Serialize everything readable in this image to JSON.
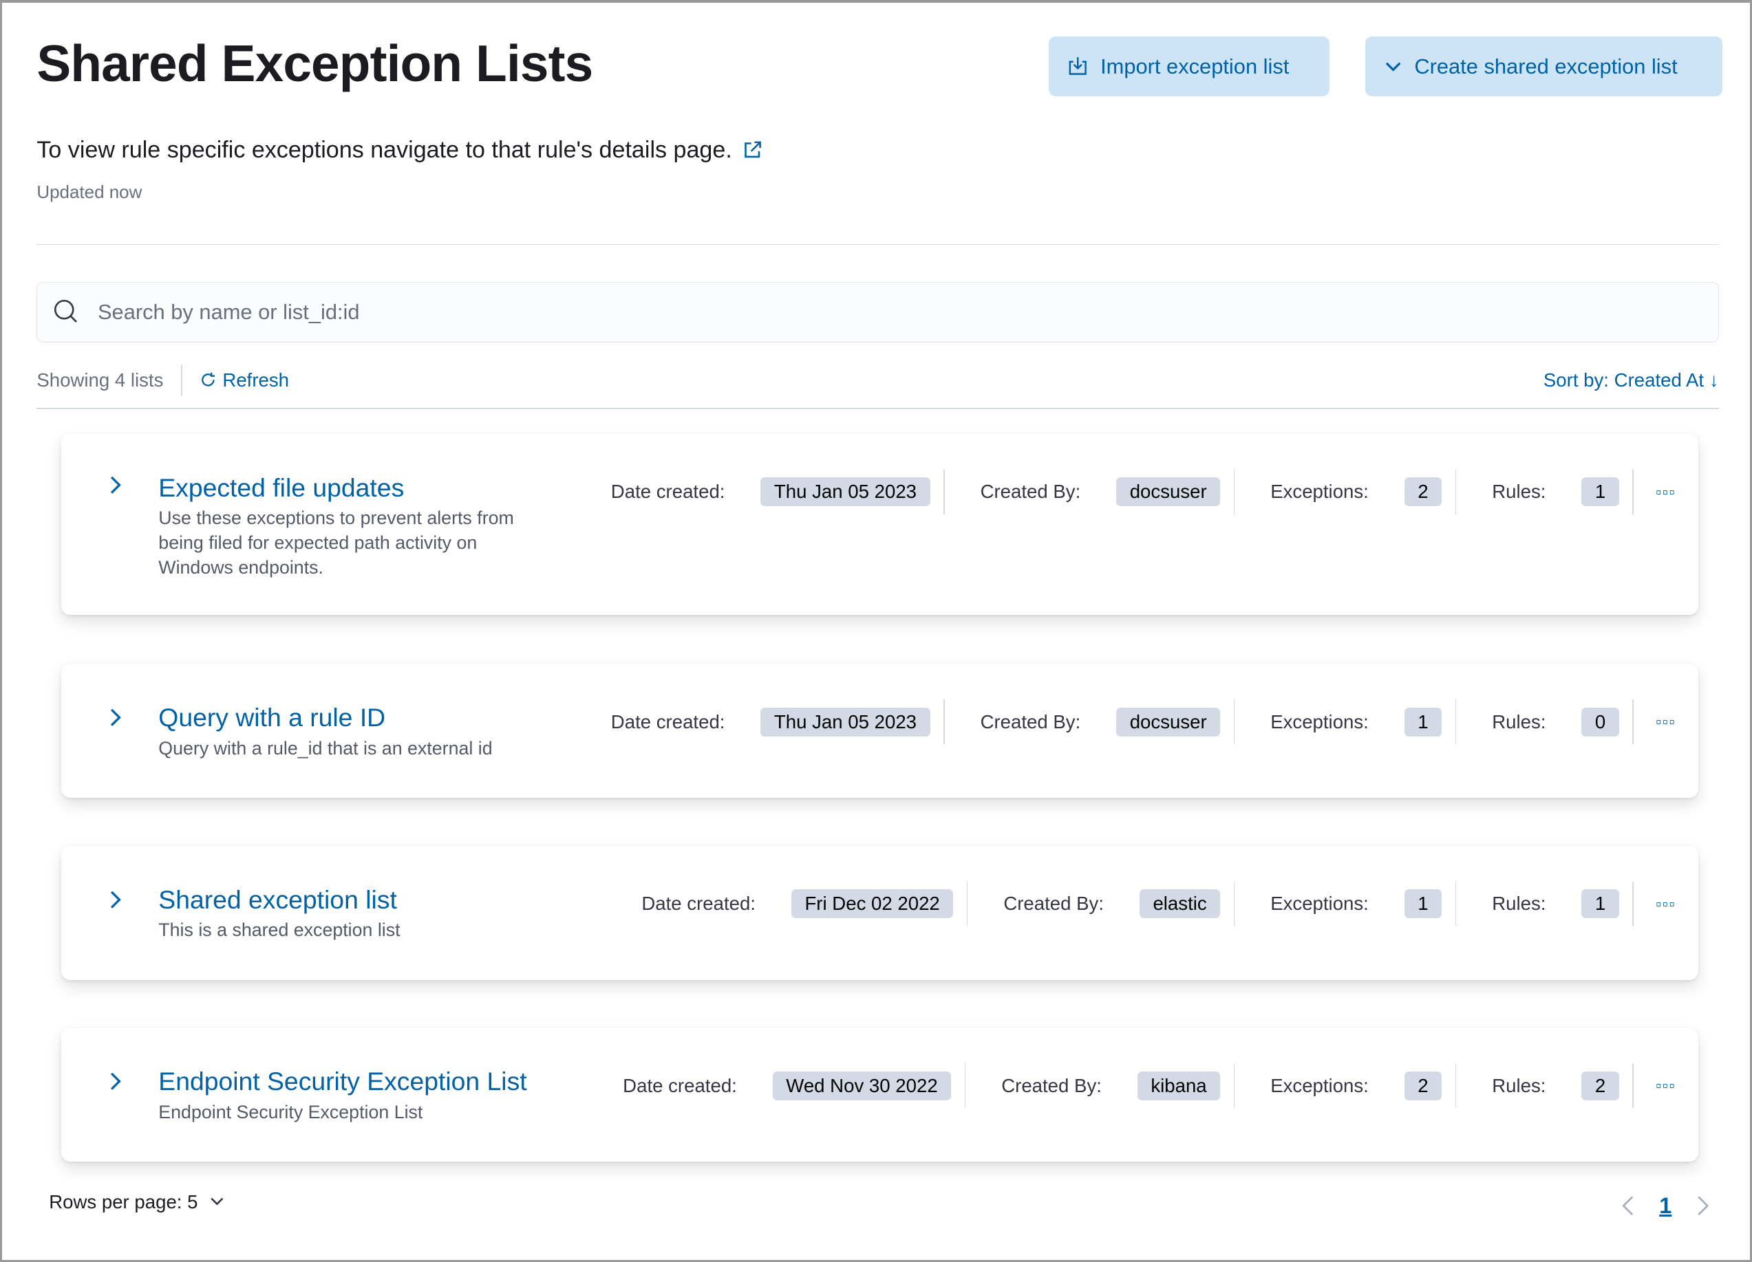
{
  "header": {
    "title": "Shared Exception Lists",
    "import_label": "Import exception list",
    "create_label": "Create shared exception list",
    "description": "To view rule specific exceptions navigate to that rule's details page.",
    "updated": "Updated now"
  },
  "search": {
    "placeholder": "Search by name or list_id:id",
    "value": ""
  },
  "toolbar": {
    "showing": "Showing 4 lists",
    "refresh": "Refresh",
    "sort": "Sort by: Created At"
  },
  "labels": {
    "date_created": "Date created:",
    "created_by": "Created By:",
    "exceptions": "Exceptions:",
    "rules": "Rules:"
  },
  "lists": [
    {
      "name": "Expected file updates",
      "description": "Use these exceptions to prevent alerts from being filed for expected path activity on Windows endpoints.",
      "date": "Thu Jan 05 2023",
      "created_by": "docsuser",
      "exceptions": "2",
      "rules": "1"
    },
    {
      "name": "Query with a rule ID",
      "description": "Query with a rule_id that is an external id",
      "date": "Thu Jan 05 2023",
      "created_by": "docsuser",
      "exceptions": "1",
      "rules": "0"
    },
    {
      "name": "Shared exception list",
      "description": "This is a shared exception list",
      "date": "Fri Dec 02 2022",
      "created_by": "elastic",
      "exceptions": "1",
      "rules": "1"
    },
    {
      "name": "Endpoint Security Exception List",
      "description": "Endpoint Security Exception List",
      "date": "Wed Nov 30 2022",
      "created_by": "kibana",
      "exceptions": "2",
      "rules": "2"
    }
  ],
  "pagination": {
    "rows_per_page": "Rows per page: 5",
    "current_page": "1"
  },
  "colors": {
    "accent": "#0061a6",
    "button_bg": "#cce4f5",
    "badge_bg": "#d3dae6"
  }
}
